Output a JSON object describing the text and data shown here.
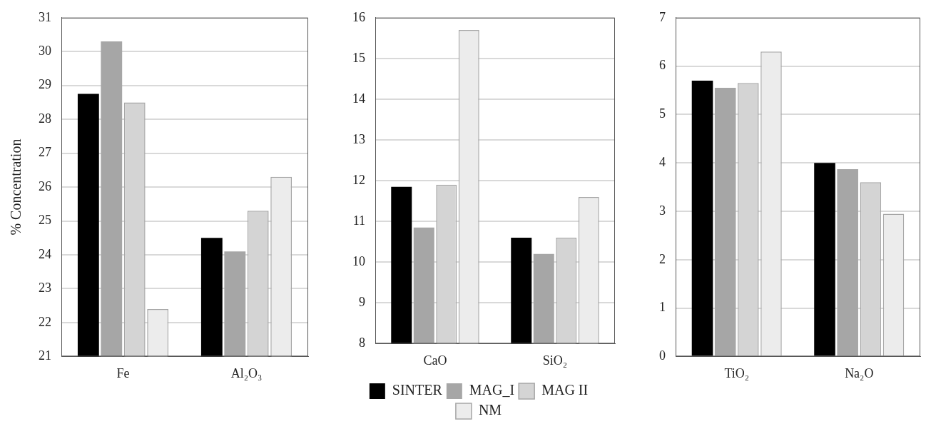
{
  "chart_data": [
    {
      "type": "bar",
      "ylabel": "% Concentration",
      "categories": [
        "Fe",
        "Al₂O₃"
      ],
      "ylim": [
        21,
        31
      ],
      "yticks": [
        21,
        22,
        23,
        24,
        25,
        26,
        27,
        28,
        29,
        30,
        31
      ],
      "grid": "y",
      "legend": false,
      "series": [
        {
          "color": "#000000",
          "values": [
            28.75,
            24.5
          ]
        },
        {
          "color": "#a6a6a6",
          "values": [
            30.3,
            24.1
          ]
        },
        {
          "color": "#d4d4d4",
          "values": [
            28.5,
            25.3
          ]
        },
        {
          "color": "#ececec",
          "values": [
            22.4,
            26.3
          ]
        }
      ]
    },
    {
      "type": "bar",
      "categories": [
        "CaO",
        "SiO₂"
      ],
      "ylim": [
        8,
        16
      ],
      "yticks": [
        8,
        9,
        10,
        11,
        12,
        13,
        14,
        15,
        16
      ],
      "grid": "y",
      "legend": "bottom",
      "series": [
        {
          "name": "SINTER",
          "color": "#000000",
          "values": [
            11.85,
            10.6
          ]
        },
        {
          "name": "MAG_I",
          "color": "#a6a6a6",
          "values": [
            10.85,
            10.2
          ]
        },
        {
          "name": "MAG II",
          "color": "#d4d4d4",
          "values": [
            11.9,
            10.6
          ]
        },
        {
          "name": "NM",
          "color": "#ececec",
          "values": [
            15.7,
            11.6
          ]
        }
      ]
    },
    {
      "type": "bar",
      "categories": [
        "TiO₂",
        "Na₂O"
      ],
      "ylim": [
        0,
        7
      ],
      "yticks": [
        0,
        1,
        2,
        3,
        4,
        5,
        6,
        7
      ],
      "grid": "y",
      "legend": false,
      "series": [
        {
          "color": "#000000",
          "values": [
            5.7,
            4.0
          ]
        },
        {
          "color": "#a6a6a6",
          "values": [
            5.55,
            3.87
          ]
        },
        {
          "color": "#d4d4d4",
          "values": [
            5.65,
            3.6
          ]
        },
        {
          "color": "#ececec",
          "values": [
            6.3,
            2.95
          ]
        }
      ]
    }
  ]
}
